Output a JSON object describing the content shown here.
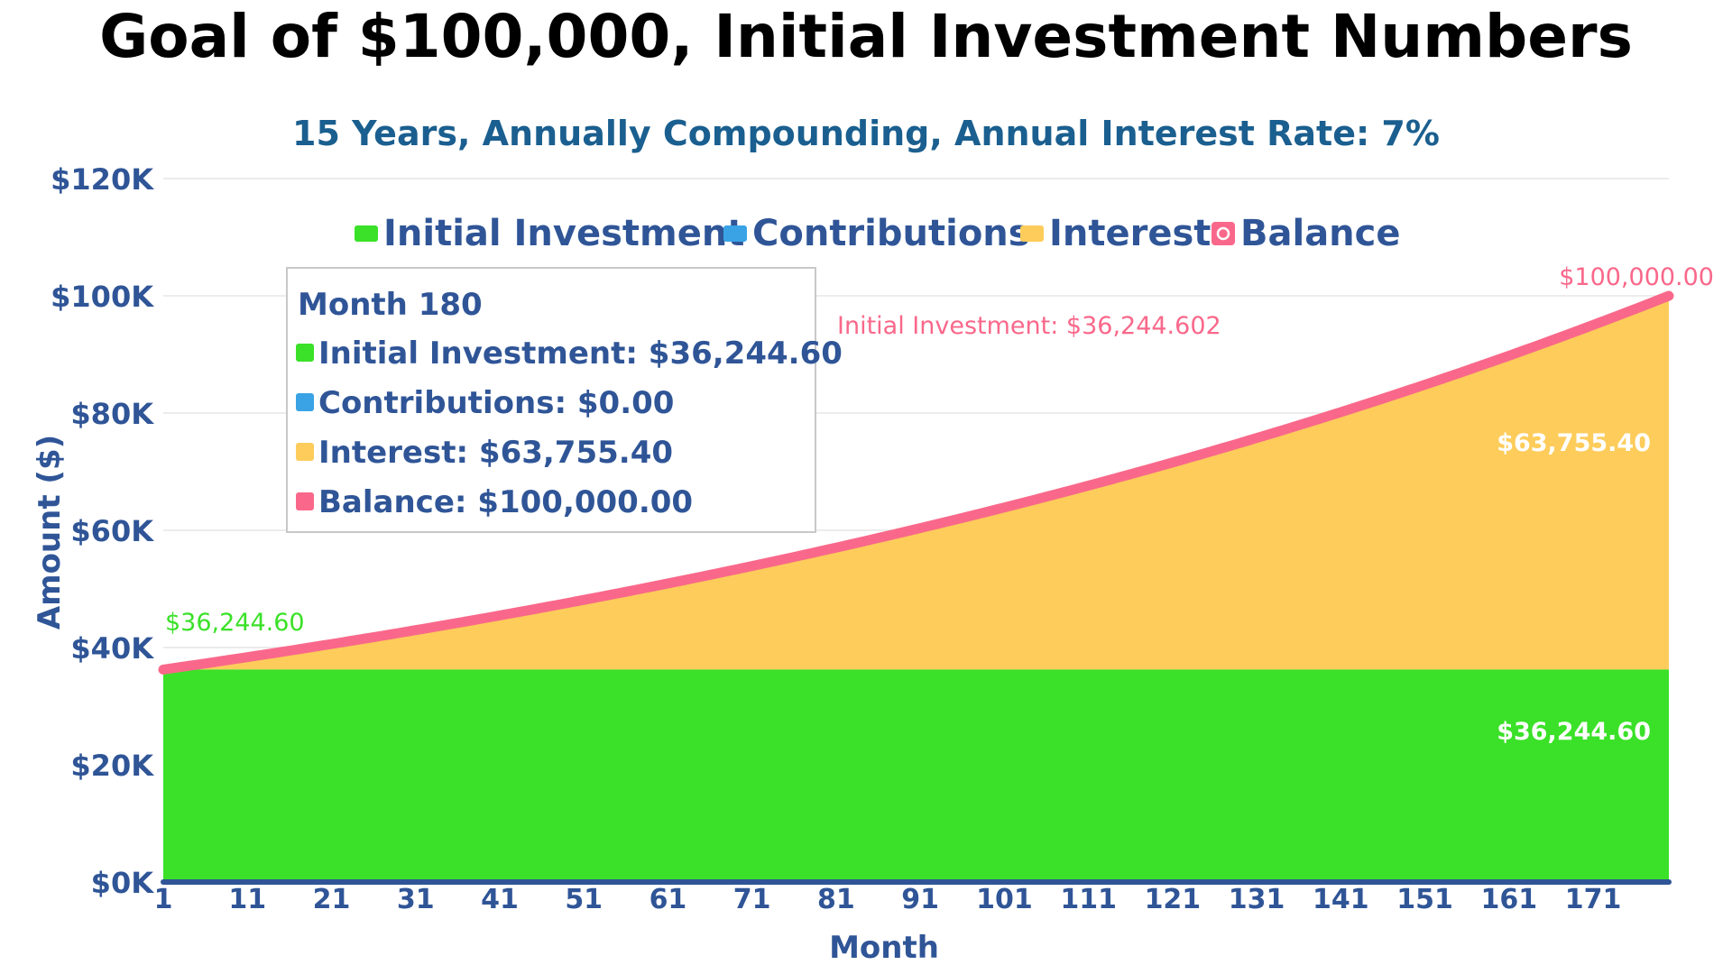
{
  "title": "Goal of $100,000, Initial Investment Numbers",
  "subtitle": "15 Years, Annually Compounding, Annual Interest Rate: 7%",
  "colors": {
    "initial": "#3ae128",
    "contributions": "#39a3e6",
    "interest": "#fdcc5b",
    "balance": "#f9688a",
    "axis_text": "#2f5597",
    "subtitle": "#1a5f8f"
  },
  "legend": [
    {
      "label": "Initial Investment",
      "color": "#3ae128",
      "icon": "square-marker"
    },
    {
      "label": "Contributions",
      "color": "#39a3e6",
      "icon": "square-marker"
    },
    {
      "label": "Interest",
      "color": "#fdcc5b",
      "icon": "square-marker"
    },
    {
      "label": "Balance",
      "color": "#f9688a",
      "icon": "circle-in-square-marker"
    }
  ],
  "tooltip": {
    "title": "Month 180",
    "rows": [
      {
        "text": "Initial Investment: $36,244.60",
        "color": "#3ae128"
      },
      {
        "text": "Contributions: $0.00",
        "color": "#39a3e6"
      },
      {
        "text": "Interest: $63,755.40",
        "color": "#fdcc5b"
      },
      {
        "text": "Balance: $100,000.00",
        "color": "#f9688a"
      }
    ]
  },
  "annotations": {
    "start_label": "$36,244.60",
    "end_balance_label": "$100,000.00",
    "initial_note": "Initial Investment: $36,244.602",
    "interest_area_label": "$63,755.40",
    "initial_area_label": "$36,244.60"
  },
  "chart_data": {
    "type": "area",
    "title": "Goal of $100,000, Initial Investment Numbers",
    "subtitle": "15 Years, Annually Compounding, Annual Interest Rate: 7%",
    "xlabel": "Month",
    "ylabel": "Amount ($)",
    "ylim": [
      0,
      120000
    ],
    "y_ticks": [
      0,
      20000,
      40000,
      60000,
      80000,
      100000,
      120000
    ],
    "y_tick_labels": [
      "$0K",
      "$20K",
      "$40K",
      "$60K",
      "$80K",
      "$100K",
      "$120K"
    ],
    "x_range": [
      1,
      180
    ],
    "x_tick_labels": [
      "1",
      "11",
      "21",
      "31",
      "41",
      "51",
      "61",
      "71",
      "81",
      "91",
      "101",
      "111",
      "121",
      "131",
      "141",
      "151",
      "161",
      "171"
    ],
    "grid": true,
    "legend_position": "top",
    "annual_rate": 0.07,
    "series": [
      {
        "name": "Initial Investment",
        "type": "area",
        "values": {
          "month_1": 36244.6,
          "month_180": 36244.6
        }
      },
      {
        "name": "Contributions",
        "type": "area",
        "values": {
          "month_1": 0,
          "month_180": 0
        }
      },
      {
        "name": "Interest",
        "type": "area",
        "values": {
          "month_1": 0,
          "month_180": 63755.4
        }
      },
      {
        "name": "Balance",
        "type": "line",
        "values": {
          "month_1": 36244.6,
          "month_180": 100000.0
        }
      }
    ]
  }
}
